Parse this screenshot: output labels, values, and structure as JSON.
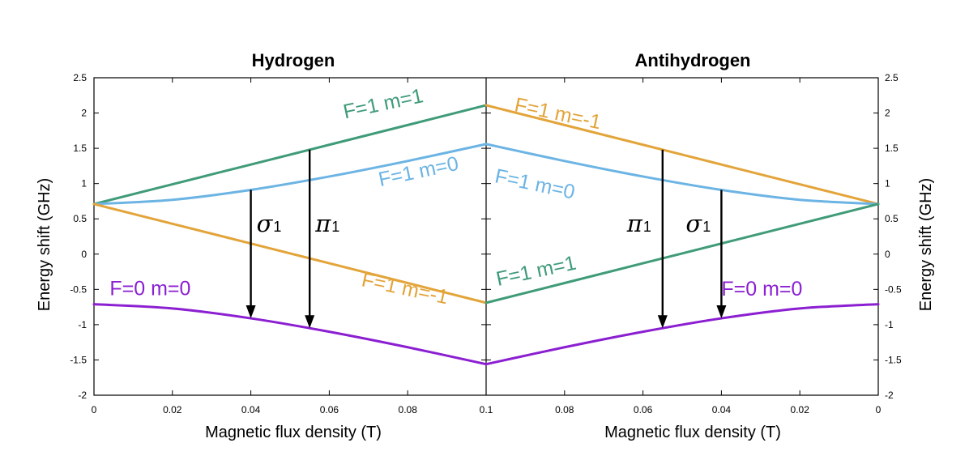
{
  "chart_data": {
    "type": "line",
    "panels": [
      {
        "title": "Hydrogen",
        "xlabel": "Magnetic flux density (T)",
        "xlim": [
          0,
          0.1
        ],
        "x_reversed": false,
        "x_ticks": [
          "0",
          "0.02",
          "0.04",
          "0.06",
          "0.08",
          "0.1"
        ],
        "series": [
          {
            "name": "F=1 m=1",
            "color": "#3f9b78",
            "x": [
              0,
              0.02,
              0.04,
              0.06,
              0.08,
              0.1
            ],
            "y": [
              0.71,
              0.99,
              1.27,
              1.55,
              1.83,
              2.11
            ]
          },
          {
            "name": "F=1 m=0",
            "color": "#6cb4e4",
            "x": [
              0,
              0.02,
              0.04,
              0.06,
              0.08,
              0.1
            ],
            "y": [
              0.71,
              0.77,
              0.91,
              1.1,
              1.32,
              1.56
            ]
          },
          {
            "name": "F=1 m=-1",
            "color": "#e3a43a",
            "x": [
              0,
              0.02,
              0.04,
              0.06,
              0.08,
              0.1
            ],
            "y": [
              0.71,
              0.43,
              0.15,
              -0.13,
              -0.41,
              -0.69
            ]
          },
          {
            "name": "F=0 m=0",
            "color": "#8b1fd1",
            "x": [
              0,
              0.02,
              0.04,
              0.06,
              0.08,
              0.1
            ],
            "y": [
              -0.71,
              -0.77,
              -0.91,
              -1.1,
              -1.32,
              -1.56
            ]
          }
        ],
        "transitions": [
          {
            "name": "σ",
            "subscript": "1",
            "x": 0.04,
            "y_from": 0.91,
            "y_to": -0.91
          },
          {
            "name": "π",
            "subscript": "1",
            "x": 0.055,
            "y_from": 1.48,
            "y_to": -1.05
          }
        ]
      },
      {
        "title": "Antihydrogen",
        "xlabel": "Magnetic flux density (T)",
        "xlim": [
          0.1,
          0
        ],
        "x_reversed": true,
        "x_ticks": [
          "0.1",
          "0.08",
          "0.06",
          "0.04",
          "0.02",
          "0"
        ],
        "series": [
          {
            "name": "F=1 m=-1",
            "color": "#e3a43a",
            "x": [
              0,
              0.02,
              0.04,
              0.06,
              0.08,
              0.1
            ],
            "y": [
              0.71,
              0.99,
              1.27,
              1.55,
              1.83,
              2.11
            ]
          },
          {
            "name": "F=1 m=0",
            "color": "#6cb4e4",
            "x": [
              0,
              0.02,
              0.04,
              0.06,
              0.08,
              0.1
            ],
            "y": [
              0.71,
              0.77,
              0.91,
              1.1,
              1.32,
              1.56
            ]
          },
          {
            "name": "F=1 m=1",
            "color": "#3f9b78",
            "x": [
              0,
              0.02,
              0.04,
              0.06,
              0.08,
              0.1
            ],
            "y": [
              0.71,
              0.43,
              0.15,
              -0.13,
              -0.41,
              -0.69
            ]
          },
          {
            "name": "F=0 m=0",
            "color": "#8b1fd1",
            "x": [
              0,
              0.02,
              0.04,
              0.06,
              0.08,
              0.1
            ],
            "y": [
              -0.71,
              -0.77,
              -0.91,
              -1.1,
              -1.32,
              -1.56
            ]
          }
        ],
        "transitions": [
          {
            "name": "π",
            "subscript": "1",
            "x": 0.055,
            "y_from": 1.48,
            "y_to": -1.05
          },
          {
            "name": "σ",
            "subscript": "1",
            "x": 0.04,
            "y_from": 0.91,
            "y_to": -0.91
          }
        ]
      }
    ],
    "ylabel": "Energy shift (GHz)",
    "ylim": [
      -2,
      2.5
    ],
    "y_ticks": [
      "2.5",
      "2",
      "1.5",
      "1",
      "0.5",
      "0",
      "-0.5",
      "-1",
      "-1.5",
      "-2"
    ],
    "grid": false
  }
}
